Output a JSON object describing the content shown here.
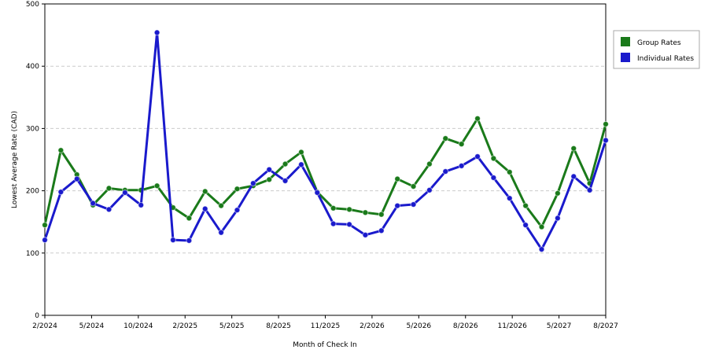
{
  "chart_data": {
    "type": "line",
    "xlabel": "Month of Check In",
    "ylabel": "Lowest Average Rate (CAD)",
    "ylim": [
      0,
      500
    ],
    "y_ticks": [
      0,
      100,
      200,
      300,
      400,
      500
    ],
    "x_tick_labels": [
      "2/2024",
      "5/2024",
      "10/2024",
      "2/2025",
      "5/2025",
      "8/2025",
      "11/2025",
      "2/2026",
      "5/2026",
      "8/2026",
      "11/2026",
      "5/2027",
      "8/2027"
    ],
    "grid": true,
    "legend_position": "right",
    "series": [
      {
        "name": "Group Rates",
        "color": "#1a7a1a",
        "values": [
          145,
          265,
          226,
          177,
          204,
          201,
          201,
          208,
          173,
          156,
          199,
          176,
          203,
          208,
          218,
          243,
          262,
          198,
          172,
          170,
          165,
          162,
          219,
          207,
          243,
          284,
          275,
          316,
          252,
          230,
          176,
          142,
          196,
          268,
          212,
          307
        ]
      },
      {
        "name": "Individual Rates",
        "color": "#1a1acc",
        "values": [
          121,
          198,
          219,
          180,
          170,
          197,
          177,
          454,
          121,
          120,
          171,
          133,
          169,
          212,
          234,
          216,
          242,
          197,
          147,
          146,
          129,
          136,
          176,
          178,
          201,
          231,
          240,
          255,
          221,
          188,
          145,
          106,
          156,
          223,
          201,
          281
        ]
      }
    ]
  }
}
